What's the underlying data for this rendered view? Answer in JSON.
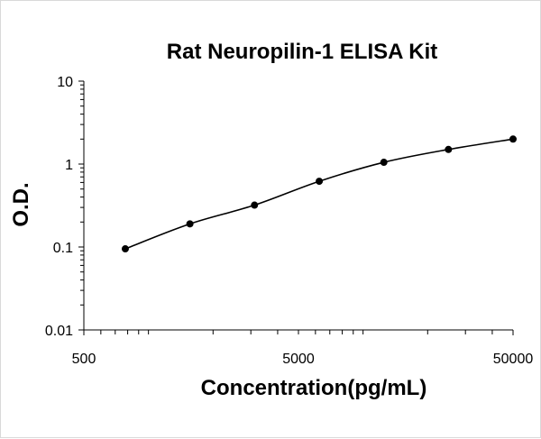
{
  "chart_data": {
    "type": "scatter",
    "title": "Rat Neuropilin-1 ELISA Kit",
    "xlabel": "Concentration(pg/mL)",
    "ylabel": "O.D.",
    "x_scale": "log",
    "y_scale": "log",
    "xlim": [
      500,
      50000
    ],
    "ylim": [
      0.01,
      10
    ],
    "x_ticks": [
      "500",
      "5000",
      "50000"
    ],
    "y_ticks": [
      "10",
      "1",
      "0.1",
      "0.01"
    ],
    "grid": false,
    "legend": "none",
    "fit_curve": true,
    "series": [
      {
        "x": [
          780,
          1560,
          3120,
          6250,
          12500,
          25000,
          50000
        ],
        "y": [
          0.095,
          0.19,
          0.32,
          0.62,
          1.05,
          1.5,
          2.0
        ]
      }
    ]
  }
}
